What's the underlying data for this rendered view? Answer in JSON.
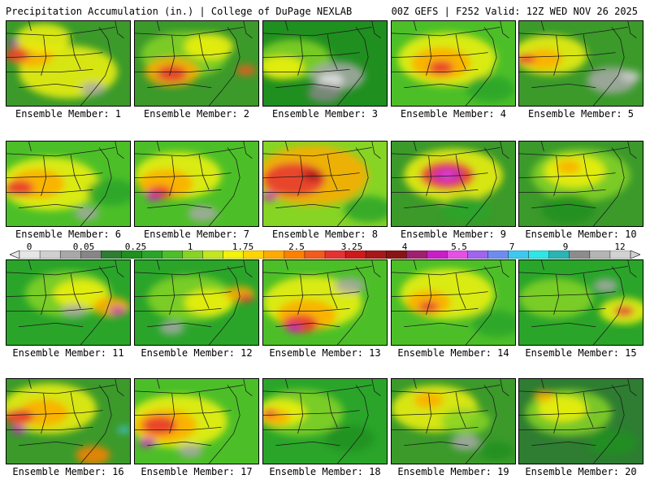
{
  "header": {
    "title_left": "Precipitation Accumulation (in.) | College of DuPage NEXLAB",
    "title_right": "00Z GEFS | F252 Valid: 12Z WED NOV 26 2025"
  },
  "colorbar": {
    "labels": [
      "0",
      "0.05",
      "0.25",
      "1",
      "1.75",
      "2.5",
      "3.25",
      "4",
      "5.5",
      "7",
      "9",
      "12"
    ],
    "colors": [
      "#e6e6e6",
      "#cfcfcf",
      "#a8a8a8",
      "#868686",
      "#2e7d32",
      "#1f8f1f",
      "#2aa52a",
      "#4cbf28",
      "#86d424",
      "#c4e61e",
      "#f2f20a",
      "#ffd400",
      "#ffaa00",
      "#ff8000",
      "#f25a1e",
      "#e63232",
      "#cc1a1a",
      "#a81818",
      "#8a1414",
      "#a0206e",
      "#c81ec8",
      "#e650e6",
      "#a064f0",
      "#6e8cf0",
      "#3ec8f0",
      "#2ee6e6",
      "#2cb4b4",
      "#8c8c8c",
      "#b4b4b4",
      "#d2d2d2"
    ]
  },
  "panels": [
    {
      "label": "Ensemble Member: 1",
      "base": "#3b9a2a",
      "blobs": [
        [
          "#f2f20a",
          50,
          60,
          40
        ],
        [
          "#ffaa00",
          20,
          40,
          18
        ],
        [
          "#e63232",
          8,
          40,
          10
        ],
        [
          "#c81ec8",
          6,
          25,
          5
        ],
        [
          "#a8a8a8",
          70,
          80,
          10
        ],
        [
          "#f2f20a",
          30,
          20,
          22
        ]
      ]
    },
    {
      "label": "Ensemble Member: 2",
      "base": "#3b9a2a",
      "blobs": [
        [
          "#86d424",
          40,
          40,
          35
        ],
        [
          "#ffaa00",
          30,
          60,
          22
        ],
        [
          "#e63232",
          30,
          62,
          12
        ],
        [
          "#f25a1e",
          90,
          58,
          8
        ],
        [
          "#f2f20a",
          60,
          30,
          20
        ]
      ]
    },
    {
      "label": "Ensemble Member: 3",
      "base": "#1f8f1f",
      "blobs": [
        [
          "#86d424",
          25,
          45,
          30
        ],
        [
          "#f2f20a",
          15,
          55,
          18
        ],
        [
          "#a8a8a8",
          60,
          65,
          22
        ],
        [
          "#e6e6e6",
          55,
          70,
          10
        ],
        [
          "#868686",
          50,
          85,
          14
        ]
      ]
    },
    {
      "label": "Ensemble Member: 4",
      "base": "#4cbf28",
      "blobs": [
        [
          "#f2f20a",
          45,
          45,
          40
        ],
        [
          "#ffaa00",
          40,
          50,
          24
        ],
        [
          "#e63232",
          40,
          55,
          10
        ],
        [
          "#2aa52a",
          80,
          80,
          20
        ]
      ]
    },
    {
      "label": "Ensemble Member: 5",
      "base": "#3b9a2a",
      "blobs": [
        [
          "#f2f20a",
          25,
          40,
          30
        ],
        [
          "#ffaa00",
          20,
          45,
          15
        ],
        [
          "#e63232",
          5,
          45,
          8
        ],
        [
          "#a8a8a8",
          75,
          70,
          20
        ],
        [
          "#cfcfcf",
          90,
          65,
          8
        ]
      ]
    },
    {
      "label": "Ensemble Member: 6",
      "base": "#4cbf28",
      "blobs": [
        [
          "#f2f20a",
          35,
          50,
          40
        ],
        [
          "#ffaa00",
          25,
          50,
          22
        ],
        [
          "#e63232",
          10,
          55,
          12
        ],
        [
          "#a8a8a8",
          65,
          85,
          10
        ],
        [
          "#2aa52a",
          85,
          60,
          20
        ]
      ]
    },
    {
      "label": "Ensemble Member: 7",
      "base": "#4cbf28",
      "blobs": [
        [
          "#f2f20a",
          35,
          40,
          35
        ],
        [
          "#ffaa00",
          25,
          50,
          22
        ],
        [
          "#e63232",
          20,
          60,
          10
        ],
        [
          "#c81ec8",
          15,
          65,
          6
        ],
        [
          "#a8a8a8",
          55,
          85,
          12
        ]
      ]
    },
    {
      "label": "Ensemble Member: 8",
      "base": "#86d424",
      "blobs": [
        [
          "#ffaa00",
          40,
          40,
          45
        ],
        [
          "#e63232",
          25,
          45,
          25
        ],
        [
          "#a81818",
          40,
          40,
          8
        ],
        [
          "#c81ec8",
          5,
          65,
          6
        ],
        [
          "#2aa52a",
          85,
          80,
          20
        ]
      ]
    },
    {
      "label": "Ensemble Member: 9",
      "base": "#3b9a2a",
      "blobs": [
        [
          "#f2f20a",
          50,
          40,
          40
        ],
        [
          "#e63232",
          45,
          40,
          22
        ],
        [
          "#c81ec8",
          45,
          40,
          12
        ],
        [
          "#e650e6",
          45,
          40,
          5
        ],
        [
          "#2aa52a",
          60,
          80,
          20
        ]
      ]
    },
    {
      "label": "Ensemble Member: 10",
      "base": "#3b9a2a",
      "blobs": [
        [
          "#86d424",
          50,
          40,
          40
        ],
        [
          "#f2f20a",
          45,
          35,
          25
        ],
        [
          "#ffaa00",
          40,
          30,
          10
        ],
        [
          "#1f8f1f",
          40,
          80,
          22
        ]
      ]
    },
    {
      "label": "Ensemble Member: 11",
      "base": "#2aa52a",
      "blobs": [
        [
          "#86d424",
          50,
          40,
          35
        ],
        [
          "#f2f20a",
          60,
          40,
          22
        ],
        [
          "#ffaa00",
          85,
          55,
          15
        ],
        [
          "#c81ec8",
          90,
          60,
          6
        ],
        [
          "#a8a8a8",
          55,
          60,
          10
        ]
      ]
    },
    {
      "label": "Ensemble Member: 12",
      "base": "#2aa52a",
      "blobs": [
        [
          "#86d424",
          45,
          45,
          35
        ],
        [
          "#f2f20a",
          60,
          50,
          20
        ],
        [
          "#ffaa00",
          85,
          40,
          12
        ],
        [
          "#e63232",
          90,
          45,
          6
        ],
        [
          "#a8a8a8",
          30,
          80,
          10
        ]
      ]
    },
    {
      "label": "Ensemble Member: 13",
      "base": "#4cbf28",
      "blobs": [
        [
          "#f2f20a",
          40,
          50,
          40
        ],
        [
          "#ffaa00",
          35,
          65,
          24
        ],
        [
          "#e63232",
          30,
          75,
          14
        ],
        [
          "#c81ec8",
          25,
          80,
          6
        ],
        [
          "#a8a8a8",
          70,
          30,
          12
        ]
      ]
    },
    {
      "label": "Ensemble Member: 14",
      "base": "#4cbf28",
      "blobs": [
        [
          "#f2f20a",
          45,
          40,
          38
        ],
        [
          "#ffaa00",
          30,
          50,
          18
        ],
        [
          "#e63232",
          30,
          55,
          8
        ],
        [
          "#2aa52a",
          85,
          75,
          20
        ]
      ]
    },
    {
      "label": "Ensemble Member: 15",
      "base": "#2aa52a",
      "blobs": [
        [
          "#86d424",
          30,
          45,
          30
        ],
        [
          "#f2f20a",
          85,
          60,
          20
        ],
        [
          "#e63232",
          85,
          60,
          8
        ],
        [
          "#a8a8a8",
          70,
          30,
          10
        ]
      ]
    },
    {
      "label": "Ensemble Member: 16",
      "base": "#3b9a2a",
      "blobs": [
        [
          "#f2f20a",
          35,
          35,
          38
        ],
        [
          "#ffaa00",
          30,
          40,
          20
        ],
        [
          "#e63232",
          10,
          45,
          12
        ],
        [
          "#ff8000",
          70,
          90,
          14
        ],
        [
          "#3ec8f0",
          95,
          60,
          5
        ],
        [
          "#c81ec8",
          10,
          60,
          6
        ]
      ]
    },
    {
      "label": "Ensemble Member: 17",
      "base": "#4cbf28",
      "blobs": [
        [
          "#f2f20a",
          35,
          50,
          40
        ],
        [
          "#ffaa00",
          25,
          55,
          25
        ],
        [
          "#e63232",
          20,
          55,
          14
        ],
        [
          "#c81ec8",
          10,
          75,
          7
        ],
        [
          "#a8a8a8",
          45,
          85,
          10
        ]
      ]
    },
    {
      "label": "Ensemble Member: 18",
      "base": "#2aa52a",
      "blobs": [
        [
          "#86d424",
          30,
          40,
          35
        ],
        [
          "#f2f20a",
          15,
          40,
          20
        ],
        [
          "#ffaa00",
          10,
          45,
          12
        ],
        [
          "#e63232",
          5,
          40,
          6
        ],
        [
          "#1f8f1f",
          70,
          70,
          20
        ]
      ]
    },
    {
      "label": "Ensemble Member: 19",
      "base": "#3b9a2a",
      "blobs": [
        [
          "#f2f20a",
          35,
          35,
          35
        ],
        [
          "#ffaa00",
          30,
          25,
          12
        ],
        [
          "#86d424",
          60,
          50,
          20
        ],
        [
          "#a8a8a8",
          60,
          75,
          12
        ],
        [
          "#1f8f1f",
          85,
          85,
          14
        ]
      ]
    },
    {
      "label": "Ensemble Member: 20",
      "base": "#2e7d32",
      "blobs": [
        [
          "#86d424",
          40,
          40,
          35
        ],
        [
          "#f2f20a",
          35,
          35,
          20
        ],
        [
          "#ffaa00",
          20,
          20,
          8
        ],
        [
          "#1f8f1f",
          75,
          75,
          20
        ]
      ]
    }
  ]
}
